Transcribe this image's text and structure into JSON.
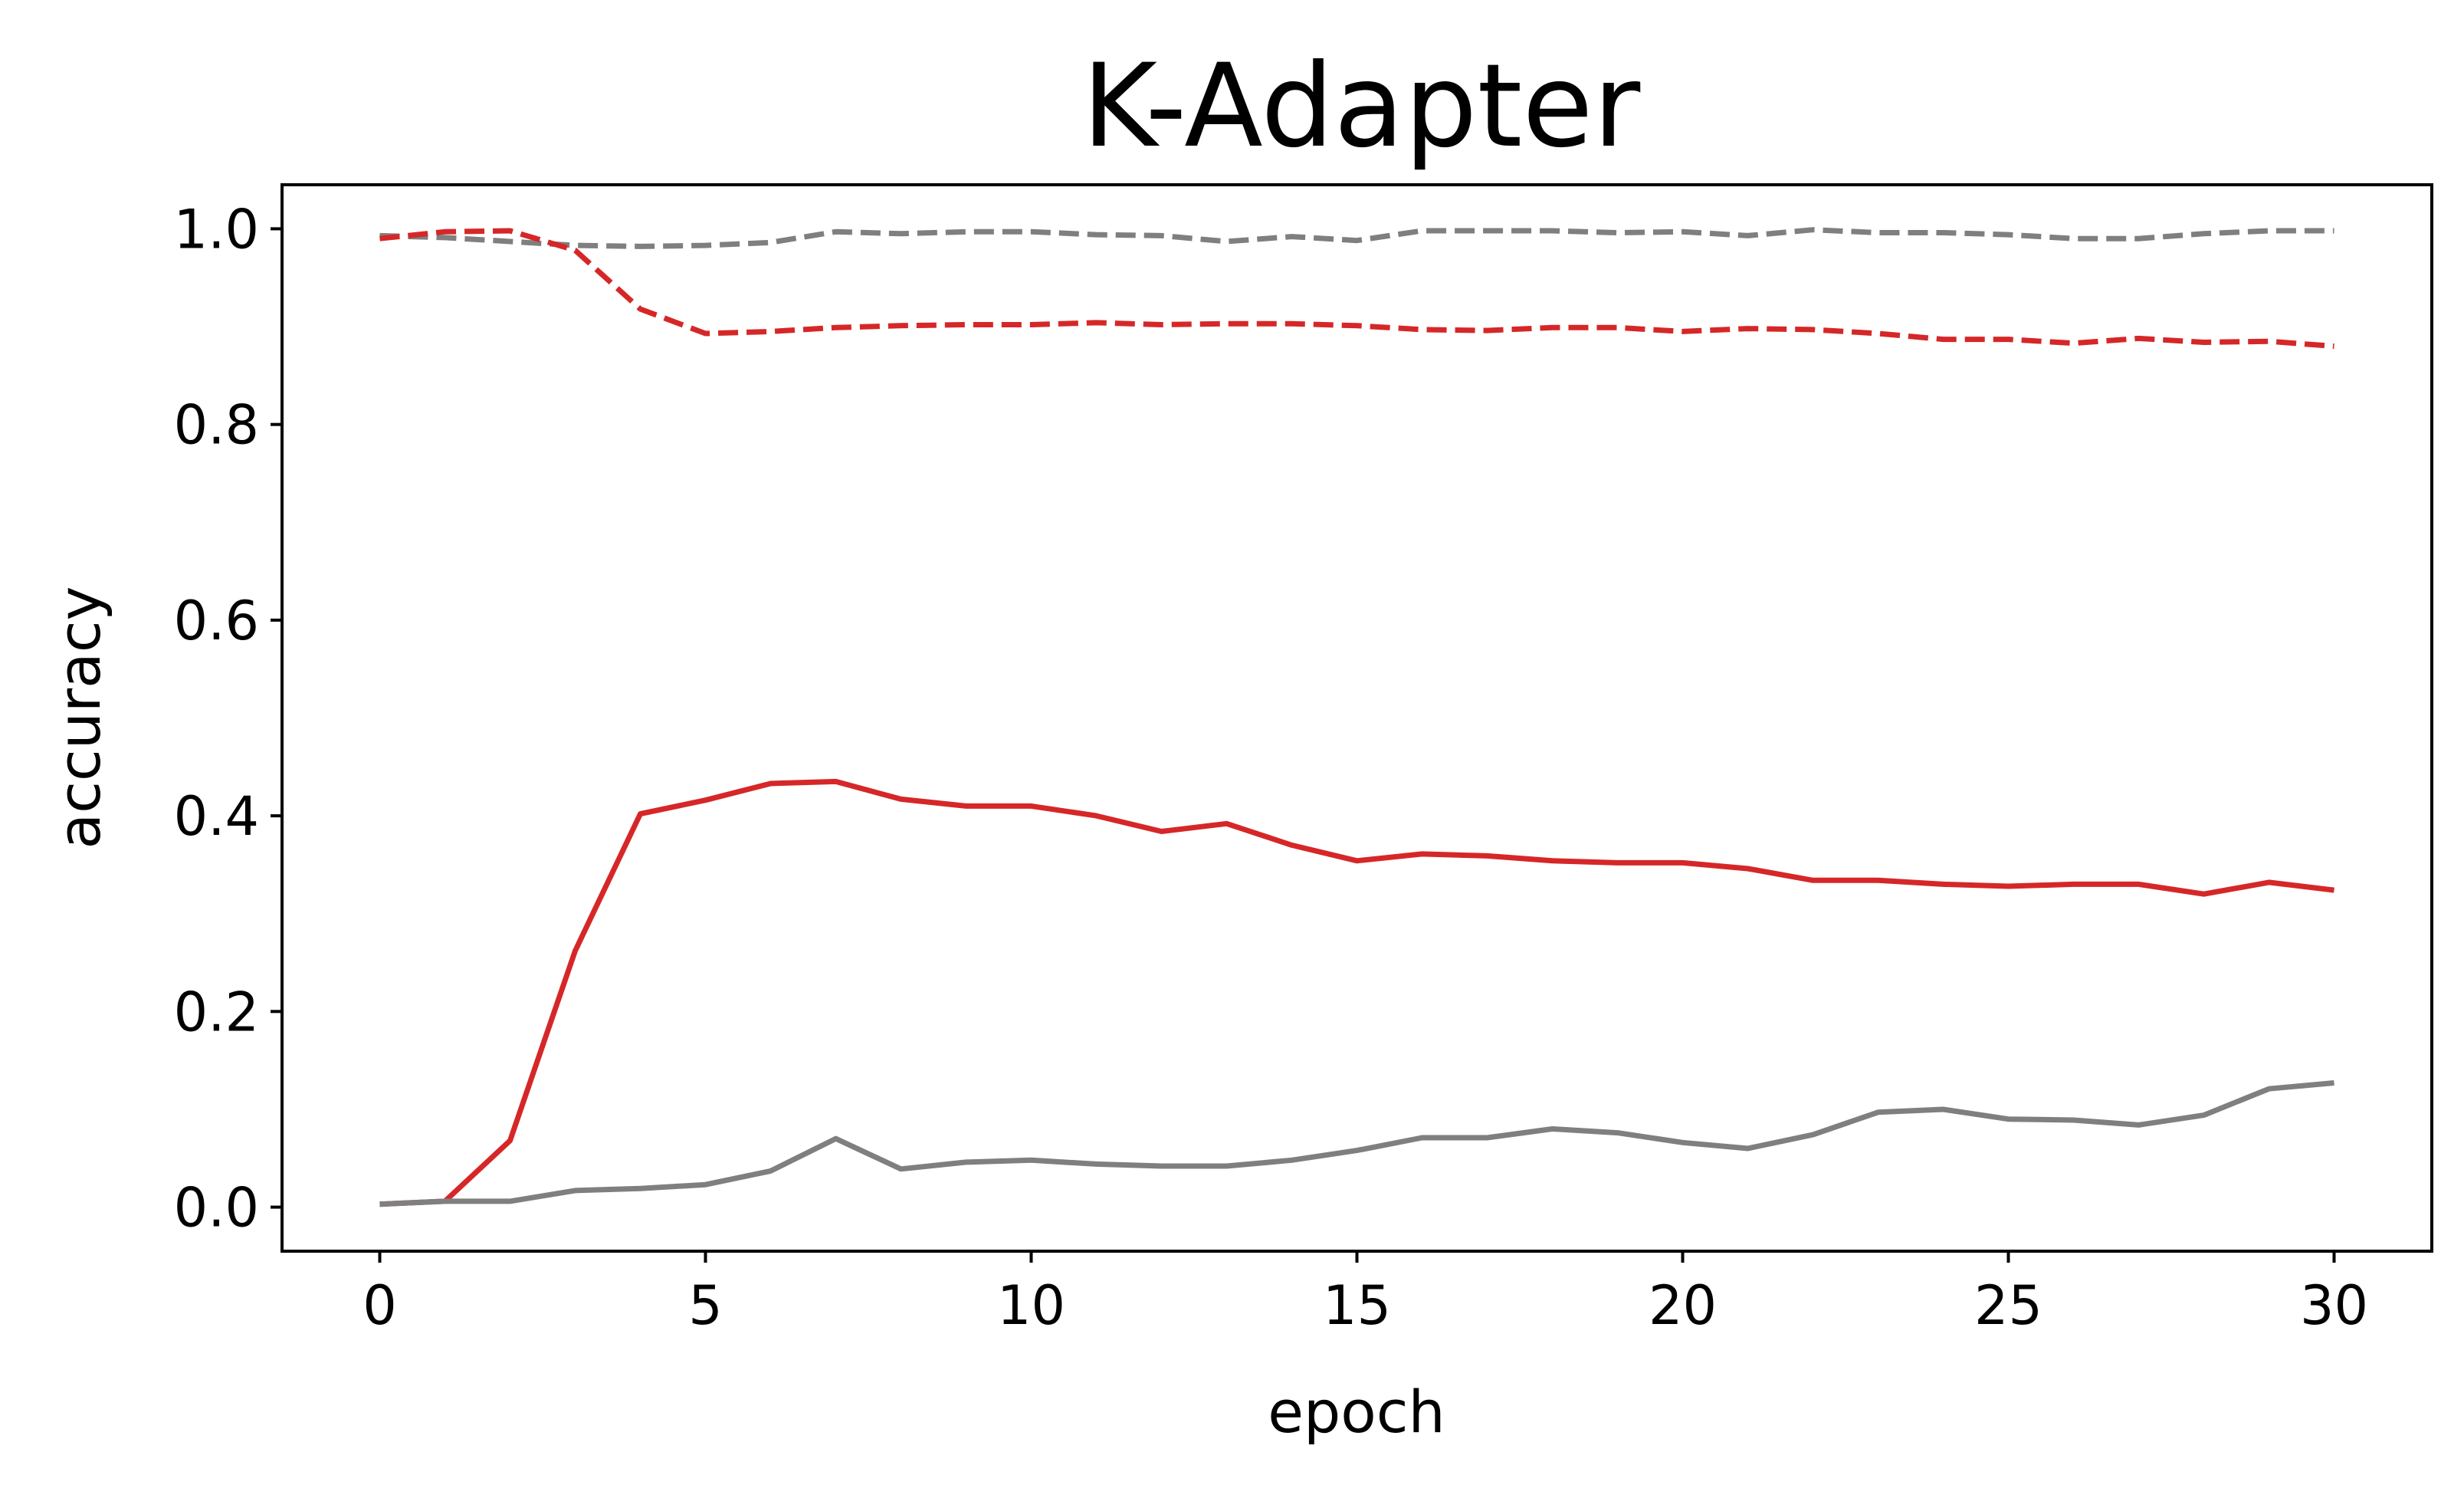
{
  "chart_data": {
    "type": "line",
    "title": "K-Adapter",
    "xlabel": "epoch",
    "ylabel": "accuracy",
    "xlim": [
      -1.5,
      31.5
    ],
    "ylim": [
      -0.045,
      1.045
    ],
    "xticks": [
      0,
      5,
      10,
      15,
      20,
      25,
      30
    ],
    "xtick_labels": [
      "0",
      "5",
      "10",
      "15",
      "20",
      "25",
      "30"
    ],
    "yticks": [
      0.0,
      0.2,
      0.4,
      0.6,
      0.8,
      1.0
    ],
    "ytick_labels": [
      "0.0",
      "0.2",
      "0.4",
      "0.6",
      "0.8",
      "1.0"
    ],
    "grid": false,
    "legend": "none",
    "x": [
      0,
      1,
      2,
      3,
      4,
      5,
      6,
      7,
      8,
      9,
      10,
      11,
      12,
      13,
      14,
      15,
      16,
      17,
      18,
      19,
      20,
      21,
      22,
      23,
      24,
      25,
      26,
      27,
      28,
      29,
      30
    ],
    "series": [
      {
        "color": "#7f7f7f",
        "style": "dashed",
        "values": [
          0.993,
          0.991,
          0.987,
          0.983,
          0.982,
          0.983,
          0.986,
          0.997,
          0.995,
          0.997,
          0.997,
          0.994,
          0.993,
          0.987,
          0.992,
          0.988,
          0.998,
          0.998,
          0.998,
          0.996,
          0.997,
          0.993,
          0.999,
          0.996,
          0.996,
          0.994,
          0.99,
          0.99,
          0.995,
          0.998,
          0.998
        ]
      },
      {
        "color": "#d62728",
        "style": "dashed",
        "values": [
          0.99,
          0.997,
          0.998,
          0.978,
          0.918,
          0.893,
          0.895,
          0.899,
          0.901,
          0.902,
          0.902,
          0.904,
          0.902,
          0.903,
          0.903,
          0.901,
          0.897,
          0.896,
          0.899,
          0.899,
          0.895,
          0.898,
          0.897,
          0.893,
          0.887,
          0.887,
          0.883,
          0.888,
          0.884,
          0.885,
          0.88
        ]
      },
      {
        "color": "#d62728",
        "style": "solid",
        "values": [
          0.003,
          0.006,
          0.068,
          0.262,
          0.402,
          0.416,
          0.433,
          0.435,
          0.417,
          0.41,
          0.41,
          0.4,
          0.384,
          0.392,
          0.37,
          0.354,
          0.361,
          0.359,
          0.354,
          0.352,
          0.352,
          0.346,
          0.334,
          0.334,
          0.33,
          0.328,
          0.33,
          0.33,
          0.32,
          0.332,
          0.324
        ]
      },
      {
        "color": "#7f7f7f",
        "style": "solid",
        "values": [
          0.003,
          0.006,
          0.006,
          0.017,
          0.019,
          0.023,
          0.037,
          0.07,
          0.039,
          0.046,
          0.048,
          0.044,
          0.042,
          0.042,
          0.048,
          0.058,
          0.071,
          0.071,
          0.08,
          0.076,
          0.066,
          0.06,
          0.074,
          0.097,
          0.1,
          0.09,
          0.089,
          0.084,
          0.094,
          0.121,
          0.127
        ]
      }
    ]
  }
}
